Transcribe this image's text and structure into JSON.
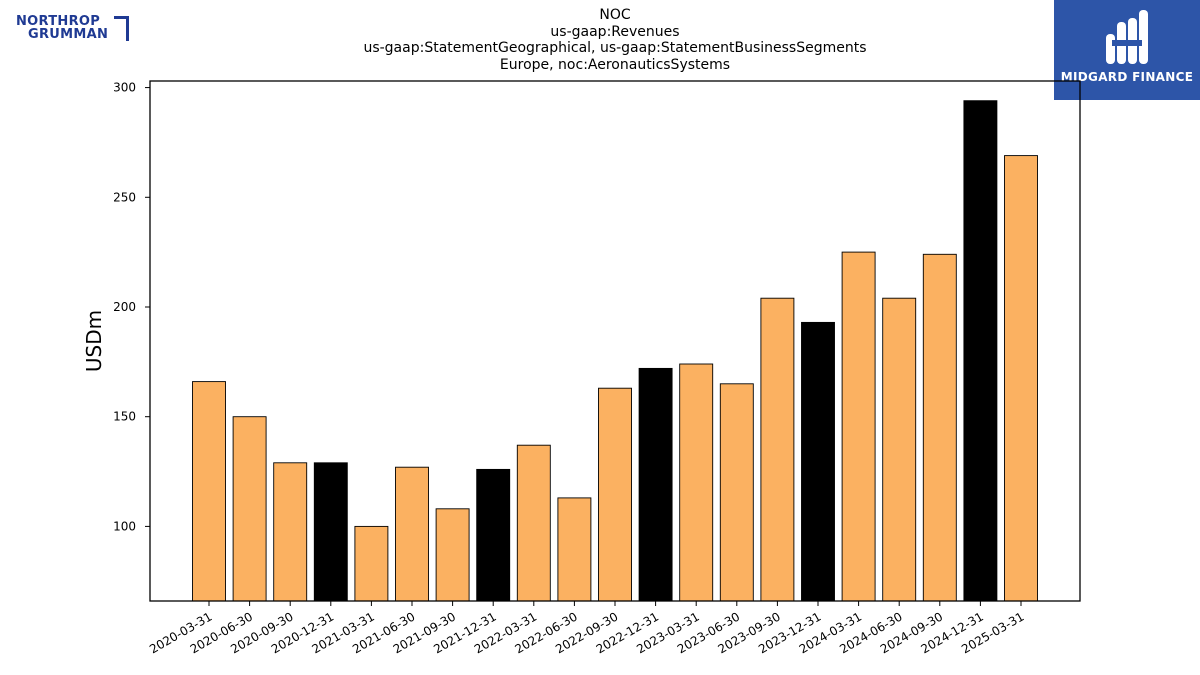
{
  "logos": {
    "left_line1": "NORTHROP",
    "left_line2": "GRUMMAN",
    "right_text": "MIDGARD FINANCE"
  },
  "chart_data": {
    "type": "bar",
    "title_lines": [
      "NOC",
      "us-gaap:Revenues",
      "us-gaap:StatementGeographical, us-gaap:StatementBusinessSegments",
      "Europe, noc:AeronauticsSystems"
    ],
    "ylabel": "USDm",
    "xlabel": "",
    "ylim": [
      66,
      303
    ],
    "yticks": [
      100,
      150,
      200,
      250,
      300
    ],
    "categories": [
      "2020-03-31",
      "2020-06-30",
      "2020-09-30",
      "2020-12-31",
      "2021-03-31",
      "2021-06-30",
      "2021-09-30",
      "2021-12-31",
      "2022-03-31",
      "2022-06-30",
      "2022-09-30",
      "2022-12-31",
      "2023-03-31",
      "2023-06-30",
      "2023-09-30",
      "2023-12-31",
      "2024-03-31",
      "2024-06-30",
      "2024-09-30",
      "2024-12-31",
      "2025-03-31"
    ],
    "values": [
      166,
      150,
      129,
      129,
      100,
      127,
      108,
      126,
      137,
      113,
      163,
      172,
      174,
      165,
      204,
      193,
      225,
      204,
      224,
      294,
      269
    ],
    "colors": {
      "quarter": "#fbb161",
      "year_end": "#000000"
    },
    "highlight_year_end": true,
    "grid": false
  }
}
